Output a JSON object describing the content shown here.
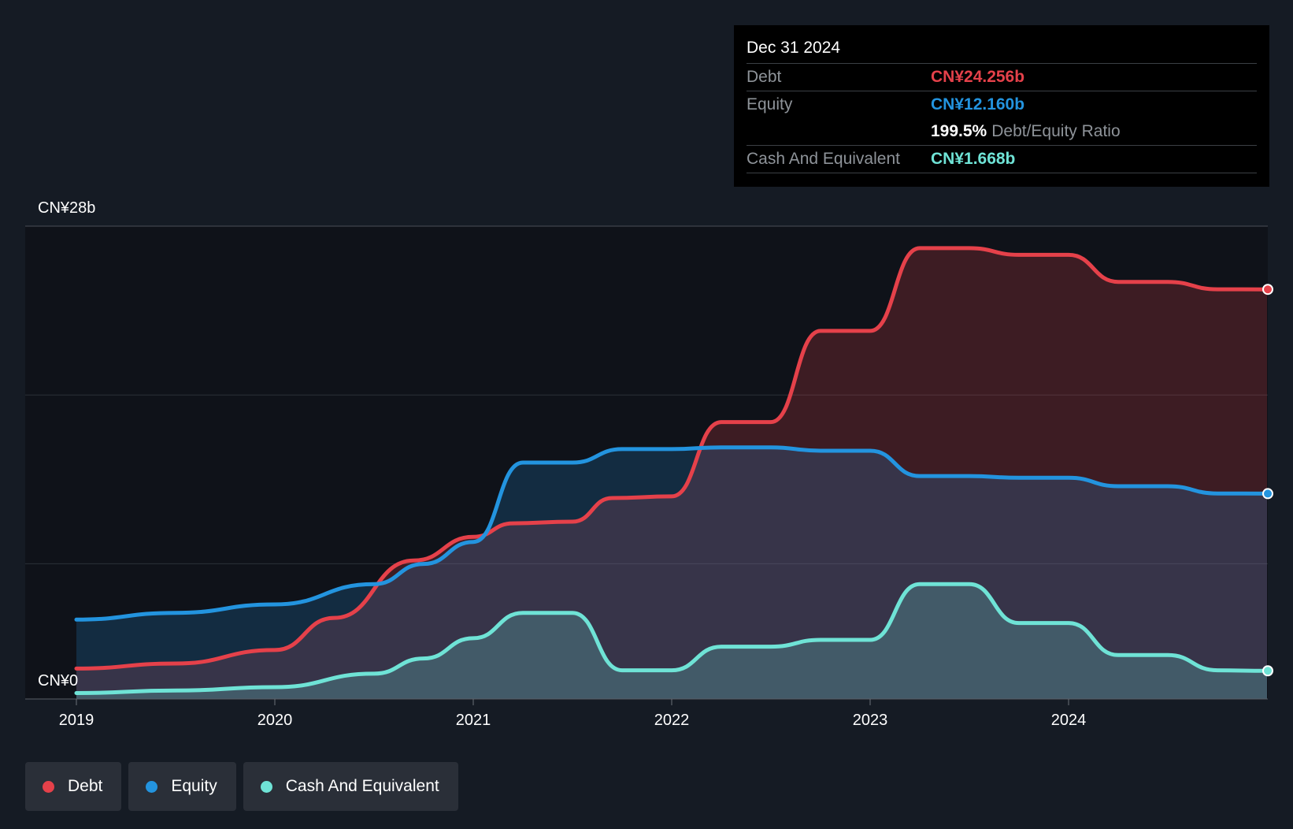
{
  "chart_data": {
    "type": "area",
    "y_unit": "CN¥",
    "ylim": [
      0,
      28
    ],
    "ytick_labels": {
      "top": "CN¥28b",
      "bottom": "CN¥0"
    },
    "xlim": [
      2019.0,
      2025.0
    ],
    "xtick_labels": [
      "2019",
      "2020",
      "2021",
      "2022",
      "2023",
      "2024"
    ],
    "xtick_values": [
      2019,
      2020,
      2021,
      2022,
      2023,
      2024
    ],
    "series": [
      {
        "name": "Debt",
        "color": "#e5414a",
        "values": [
          [
            2019.0,
            1.8
          ],
          [
            2019.5,
            2.1
          ],
          [
            2020.0,
            2.9
          ],
          [
            2020.3,
            4.8
          ],
          [
            2020.7,
            8.2
          ],
          [
            2021.0,
            9.6
          ],
          [
            2021.2,
            10.4
          ],
          [
            2021.5,
            10.5
          ],
          [
            2021.7,
            11.9
          ],
          [
            2022.0,
            12.0
          ],
          [
            2022.25,
            16.4
          ],
          [
            2022.5,
            16.4
          ],
          [
            2022.75,
            21.8
          ],
          [
            2023.0,
            21.8
          ],
          [
            2023.25,
            26.7
          ],
          [
            2023.5,
            26.7
          ],
          [
            2023.75,
            26.3
          ],
          [
            2024.0,
            26.3
          ],
          [
            2024.25,
            24.7
          ],
          [
            2024.5,
            24.7
          ],
          [
            2024.75,
            24.26
          ],
          [
            2025.0,
            24.256
          ]
        ]
      },
      {
        "name": "Equity",
        "color": "#2394df",
        "values": [
          [
            2019.0,
            4.7
          ],
          [
            2019.5,
            5.1
          ],
          [
            2020.0,
            5.6
          ],
          [
            2020.5,
            6.8
          ],
          [
            2020.75,
            8.0
          ],
          [
            2021.0,
            9.3
          ],
          [
            2021.25,
            14.0
          ],
          [
            2021.5,
            14.0
          ],
          [
            2021.75,
            14.8
          ],
          [
            2022.0,
            14.8
          ],
          [
            2022.25,
            14.9
          ],
          [
            2022.5,
            14.9
          ],
          [
            2022.75,
            14.7
          ],
          [
            2023.0,
            14.7
          ],
          [
            2023.25,
            13.2
          ],
          [
            2023.5,
            13.2
          ],
          [
            2023.75,
            13.1
          ],
          [
            2024.0,
            13.1
          ],
          [
            2024.25,
            12.6
          ],
          [
            2024.5,
            12.6
          ],
          [
            2024.75,
            12.17
          ],
          [
            2025.0,
            12.16
          ]
        ]
      },
      {
        "name": "Cash And Equivalent",
        "color": "#6fe3d6",
        "values": [
          [
            2019.0,
            0.35
          ],
          [
            2019.5,
            0.5
          ],
          [
            2020.0,
            0.7
          ],
          [
            2020.5,
            1.5
          ],
          [
            2020.75,
            2.4
          ],
          [
            2021.0,
            3.6
          ],
          [
            2021.25,
            5.1
          ],
          [
            2021.5,
            5.1
          ],
          [
            2021.75,
            1.7
          ],
          [
            2022.0,
            1.7
          ],
          [
            2022.25,
            3.1
          ],
          [
            2022.5,
            3.1
          ],
          [
            2022.75,
            3.5
          ],
          [
            2023.0,
            3.5
          ],
          [
            2023.25,
            6.8
          ],
          [
            2023.5,
            6.8
          ],
          [
            2023.75,
            4.5
          ],
          [
            2024.0,
            4.5
          ],
          [
            2024.25,
            2.6
          ],
          [
            2024.5,
            2.6
          ],
          [
            2024.75,
            1.7
          ],
          [
            2025.0,
            1.668
          ]
        ]
      }
    ],
    "legend": "bottom-left",
    "grid": "horizontal"
  },
  "tooltip": {
    "date": "Dec 31 2024",
    "debt_label": "Debt",
    "debt_value": "CN¥24.256b",
    "equity_label": "Equity",
    "equity_value": "CN¥12.160b",
    "ratio_value": "199.5%",
    "ratio_label": "Debt/Equity Ratio",
    "cash_label": "Cash And Equivalent",
    "cash_value": "CN¥1.668b"
  },
  "legend": {
    "items": [
      {
        "label": "Debt",
        "color": "#e5414a"
      },
      {
        "label": "Equity",
        "color": "#2394df"
      },
      {
        "label": "Cash And Equivalent",
        "color": "#6fe3d6"
      }
    ]
  }
}
